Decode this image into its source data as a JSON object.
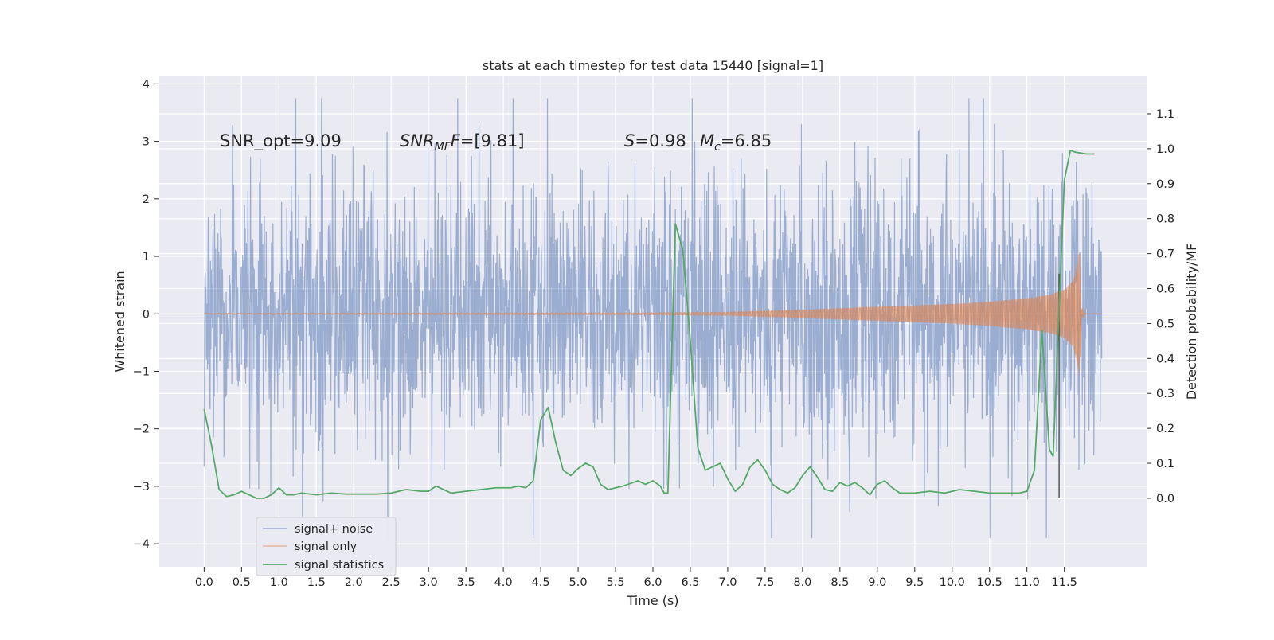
{
  "chart_data": {
    "type": "line",
    "title": "stats at each timestep for test data 15440 [signal=1]",
    "xlabel": "Time (s)",
    "ylabel_left": "Whitened strain",
    "ylabel_right": "Detection probability/MF",
    "xlim": [
      -0.6,
      12.6
    ],
    "ylim_left": [
      -4.4,
      4.13
    ],
    "ylim_right": [
      -0.196,
      1.207
    ],
    "x_ticks": [
      "0.0",
      "0.5",
      "1.0",
      "1.5",
      "2.0",
      "2.5",
      "3.0",
      "3.5",
      "4.0",
      "4.5",
      "5.0",
      "5.5",
      "6.0",
      "6.5",
      "7.0",
      "7.5",
      "8.0",
      "8.5",
      "9.0",
      "9.5",
      "10.0",
      "10.5",
      "11.0",
      "11.5"
    ],
    "y_ticks_left": [
      "4",
      "3",
      "2",
      "1",
      "0",
      "−1",
      "−2",
      "−3",
      "−4"
    ],
    "y_ticks_right": [
      "0.0",
      "0.1",
      "0.2",
      "0.3",
      "0.4",
      "0.5",
      "0.6",
      "0.7",
      "0.8",
      "0.9",
      "1.0",
      "1.1"
    ],
    "grid": true,
    "legend_position": "lower-left",
    "annotations": {
      "snr_opt": "SNR_opt=9.09",
      "snr_mf_name": "SNR",
      "snr_mf_sub": "MF",
      "snr_mf_tail": "=[9.81]",
      "s_name": "S",
      "s_value": "=0.98",
      "mc_name": "M",
      "mc_sub": "c",
      "mc_value": "=6.85"
    },
    "vertical_marker_x": 11.43,
    "series": [
      {
        "name": "signal+ noise",
        "color": "#4c72b0",
        "axis": "left",
        "envelope_note": "noise band roughly ±1.4 with spikes up to about ±3.7",
        "t_start": 0.0,
        "t_end": 12.0
      },
      {
        "name": "signal only",
        "color": "#dd8452",
        "axis": "left",
        "amplitude_points": [
          [
            0.0,
            0.01
          ],
          [
            6.0,
            0.02
          ],
          [
            7.0,
            0.03
          ],
          [
            8.0,
            0.07
          ],
          [
            9.0,
            0.12
          ],
          [
            10.0,
            0.17
          ],
          [
            10.5,
            0.21
          ],
          [
            11.0,
            0.27
          ],
          [
            11.3,
            0.33
          ],
          [
            11.5,
            0.42
          ],
          [
            11.62,
            0.58
          ],
          [
            11.68,
            0.9
          ],
          [
            11.71,
            1.2
          ],
          [
            11.73,
            0.1
          ],
          [
            11.78,
            0.0
          ]
        ]
      },
      {
        "name": "signal statistics",
        "color": "#55a868",
        "axis": "right",
        "x": [
          0.0,
          0.1,
          0.2,
          0.3,
          0.4,
          0.5,
          0.6,
          0.7,
          0.8,
          0.9,
          1.0,
          1.1,
          1.2,
          1.3,
          1.5,
          1.7,
          1.9,
          2.1,
          2.3,
          2.5,
          2.7,
          2.9,
          3.0,
          3.1,
          3.3,
          3.5,
          3.7,
          3.9,
          4.1,
          4.2,
          4.3,
          4.4,
          4.5,
          4.6,
          4.7,
          4.8,
          4.9,
          5.0,
          5.1,
          5.2,
          5.3,
          5.4,
          5.6,
          5.8,
          5.9,
          6.0,
          6.1,
          6.15,
          6.2,
          6.3,
          6.4,
          6.5,
          6.6,
          6.7,
          6.8,
          6.9,
          7.0,
          7.1,
          7.2,
          7.3,
          7.4,
          7.5,
          7.6,
          7.7,
          7.8,
          7.9,
          8.0,
          8.1,
          8.2,
          8.3,
          8.4,
          8.5,
          8.6,
          8.7,
          8.8,
          8.9,
          9.0,
          9.1,
          9.2,
          9.3,
          9.5,
          9.7,
          9.9,
          10.1,
          10.3,
          10.5,
          10.7,
          10.9,
          11.0,
          11.1,
          11.2,
          11.3,
          11.35,
          11.42,
          11.5,
          11.58,
          11.65,
          11.8,
          11.9
        ],
        "y": [
          0.255,
          0.15,
          0.025,
          0.005,
          0.01,
          0.02,
          0.01,
          0.0,
          0.0,
          0.01,
          0.03,
          0.01,
          0.01,
          0.015,
          0.01,
          0.015,
          0.012,
          0.012,
          0.012,
          0.015,
          0.025,
          0.02,
          0.02,
          0.035,
          0.015,
          0.02,
          0.025,
          0.03,
          0.03,
          0.035,
          0.03,
          0.05,
          0.225,
          0.26,
          0.16,
          0.08,
          0.065,
          0.085,
          0.1,
          0.09,
          0.04,
          0.025,
          0.035,
          0.05,
          0.04,
          0.05,
          0.035,
          0.015,
          0.015,
          0.785,
          0.71,
          0.45,
          0.145,
          0.08,
          0.09,
          0.1,
          0.055,
          0.02,
          0.04,
          0.09,
          0.11,
          0.08,
          0.04,
          0.025,
          0.015,
          0.03,
          0.065,
          0.09,
          0.06,
          0.025,
          0.02,
          0.045,
          0.035,
          0.045,
          0.03,
          0.01,
          0.04,
          0.05,
          0.03,
          0.015,
          0.015,
          0.02,
          0.015,
          0.025,
          0.02,
          0.015,
          0.015,
          0.015,
          0.02,
          0.08,
          0.48,
          0.14,
          0.12,
          0.49,
          0.91,
          0.995,
          0.99,
          0.985,
          0.985
        ]
      }
    ]
  }
}
